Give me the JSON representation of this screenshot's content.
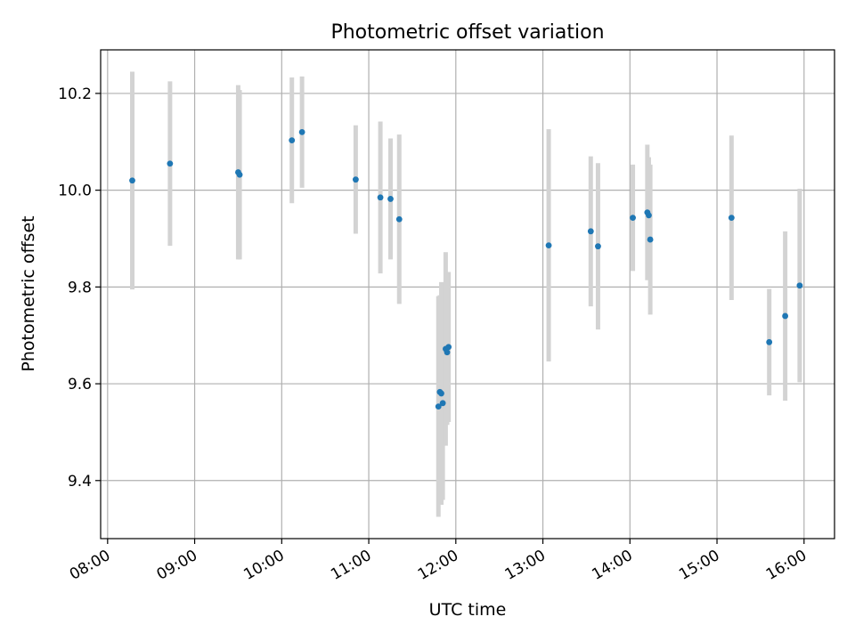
{
  "chart_data": {
    "type": "scatter",
    "title": "Photometric offset variation",
    "xlabel": "UTC time",
    "ylabel": "Photometric offset",
    "x_axis": {
      "kind": "time",
      "range_hours": [
        7.92,
        16.35
      ],
      "ticks": [
        {
          "value": 8,
          "label": "08:00"
        },
        {
          "value": 9,
          "label": "09:00"
        },
        {
          "value": 10,
          "label": "10:00"
        },
        {
          "value": 11,
          "label": "11:00"
        },
        {
          "value": 12,
          "label": "12:00"
        },
        {
          "value": 13,
          "label": "13:00"
        },
        {
          "value": 14,
          "label": "14:00"
        },
        {
          "value": 15,
          "label": "15:00"
        },
        {
          "value": 16,
          "label": "16:00"
        }
      ]
    },
    "y_axis": {
      "range": [
        9.28,
        10.29
      ],
      "ticks": [
        {
          "value": 9.4,
          "label": "9.4"
        },
        {
          "value": 9.6,
          "label": "9.6"
        },
        {
          "value": 9.8,
          "label": "9.8"
        },
        {
          "value": 10.0,
          "label": "10.0"
        },
        {
          "value": 10.2,
          "label": "10.2"
        }
      ]
    },
    "grid": true,
    "colors": {
      "marker": "#1f77b4",
      "errorbar": "#d3d3d3"
    },
    "points": [
      {
        "time": "08:17",
        "y": 10.02,
        "err": 0.225
      },
      {
        "time": "08:43",
        "y": 10.055,
        "err": 0.17
      },
      {
        "time": "09:30",
        "y": 10.037,
        "err": 0.18
      },
      {
        "time": "09:31",
        "y": 10.032,
        "err": 0.175
      },
      {
        "time": "10:07",
        "y": 10.103,
        "err": 0.13
      },
      {
        "time": "10:14",
        "y": 10.12,
        "err": 0.115
      },
      {
        "time": "10:51",
        "y": 10.022,
        "err": 0.112
      },
      {
        "time": "11:08",
        "y": 9.985,
        "err": 0.157
      },
      {
        "time": "11:15",
        "y": 9.982,
        "err": 0.125
      },
      {
        "time": "11:21",
        "y": 9.94,
        "err": 0.175
      },
      {
        "time": "11:48",
        "y": 9.553,
        "err": 0.228
      },
      {
        "time": "11:49",
        "y": 9.583,
        "err": 0.2
      },
      {
        "time": "11:50",
        "y": 9.58,
        "err": 0.23
      },
      {
        "time": "11:51",
        "y": 9.56,
        "err": 0.2
      },
      {
        "time": "11:53",
        "y": 9.672,
        "err": 0.2
      },
      {
        "time": "11:54",
        "y": 9.665,
        "err": 0.15
      },
      {
        "time": "11:55",
        "y": 9.676,
        "err": 0.155
      },
      {
        "time": "13:04",
        "y": 9.886,
        "err": 0.24
      },
      {
        "time": "13:33",
        "y": 9.915,
        "err": 0.155
      },
      {
        "time": "13:38",
        "y": 9.884,
        "err": 0.172
      },
      {
        "time": "14:02",
        "y": 9.943,
        "err": 0.11
      },
      {
        "time": "14:12",
        "y": 9.954,
        "err": 0.14
      },
      {
        "time": "14:13",
        "y": 9.948,
        "err": 0.12
      },
      {
        "time": "14:14",
        "y": 9.898,
        "err": 0.155
      },
      {
        "time": "15:10",
        "y": 9.943,
        "err": 0.17
      },
      {
        "time": "15:36",
        "y": 9.686,
        "err": 0.11
      },
      {
        "time": "15:47",
        "y": 9.74,
        "err": 0.175
      },
      {
        "time": "15:57",
        "y": 9.803,
        "err": 0.2
      }
    ]
  }
}
